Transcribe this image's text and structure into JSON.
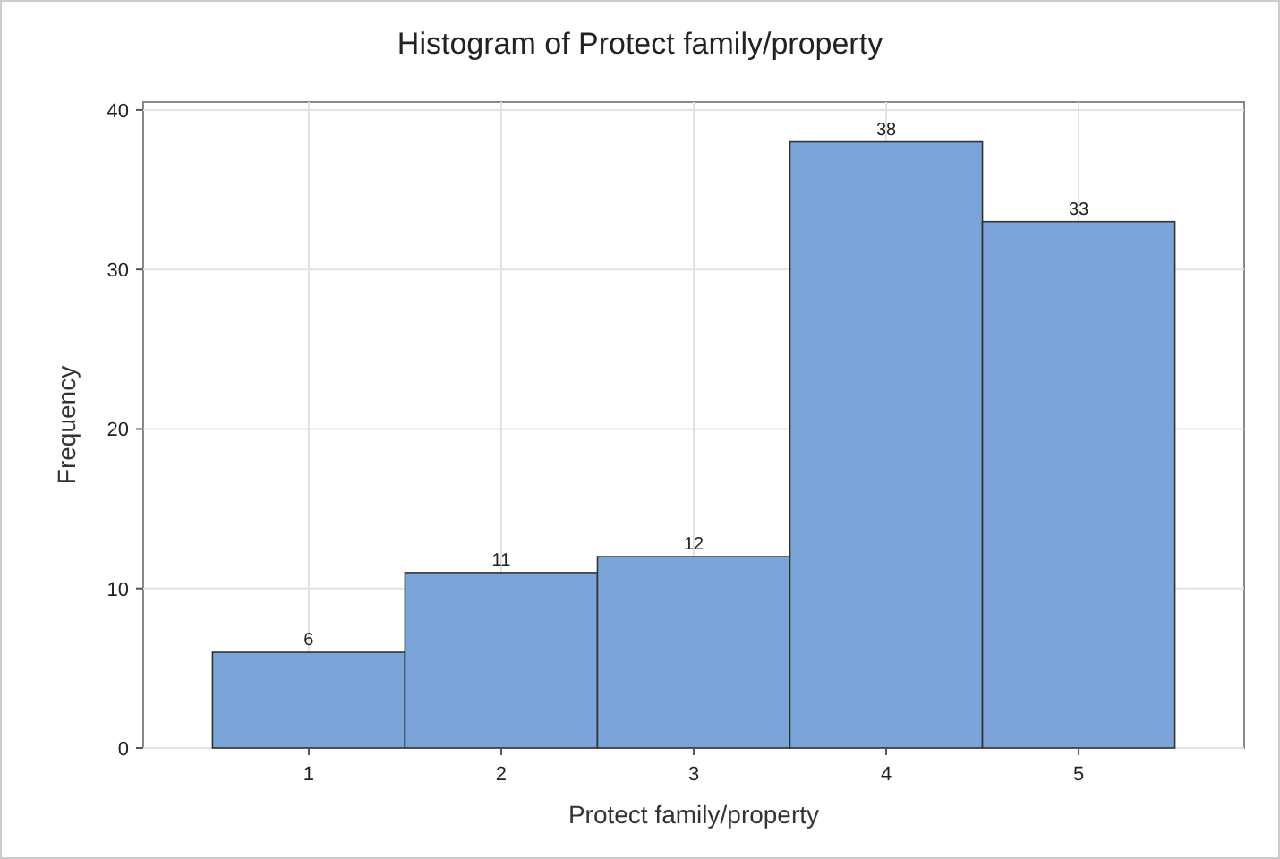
{
  "chart_data": {
    "type": "histogram",
    "title": "Histogram of Protect family/property",
    "xlabel": "Protect family/property",
    "ylabel": "Frequency",
    "bins": [
      0.5,
      1.5,
      2.5,
      3.5,
      4.5,
      5.5
    ],
    "values": [
      6,
      11,
      12,
      38,
      33
    ],
    "color": "#7ba4d9",
    "xlim": [
      0.14,
      5.86
    ],
    "xticks": [
      1,
      2,
      3,
      4,
      5
    ],
    "ylim": [
      0,
      40.5
    ],
    "yticks": [
      0,
      10,
      20,
      30,
      40
    ],
    "grid": true,
    "data_labels": true
  }
}
